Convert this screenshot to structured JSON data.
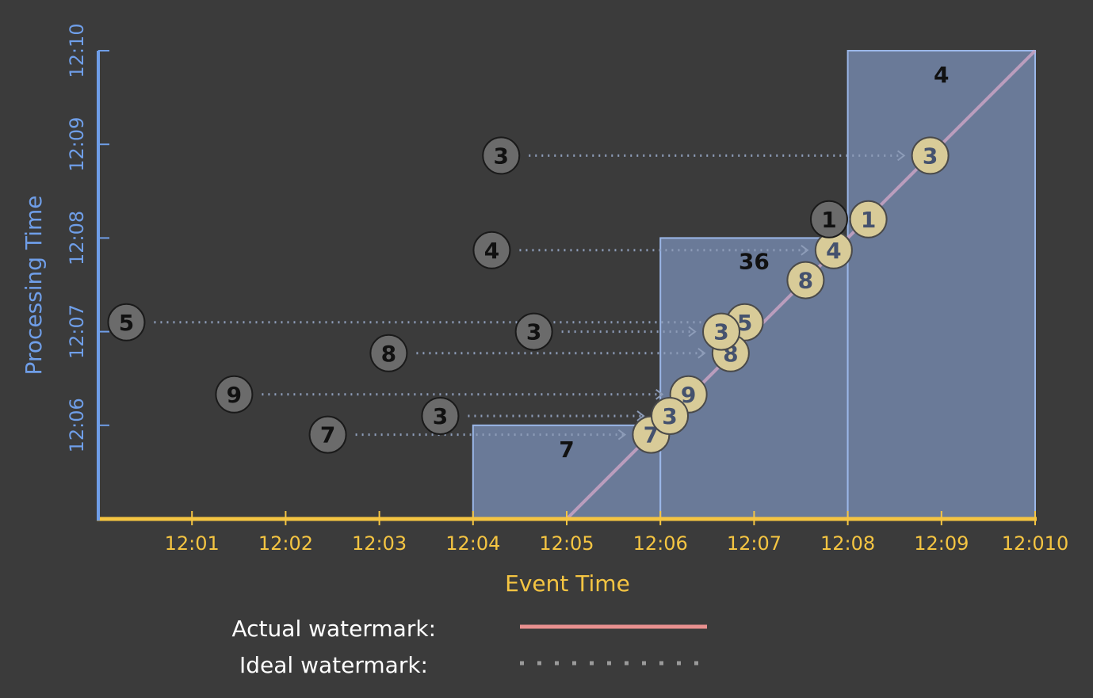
{
  "axes": {
    "x_label": "Event Time",
    "y_label": "Processing Time",
    "x_ticks": [
      "12:01",
      "12:02",
      "12:03",
      "12:04",
      "12:05",
      "12:06",
      "12:07",
      "12:08",
      "12:09",
      "12:010"
    ],
    "y_ticks": [
      "12:06",
      "12:07",
      "12:08",
      "12:09",
      "12:10"
    ],
    "x_color": "#f5c542",
    "y_color": "#6f9ee8"
  },
  "windows": [
    {
      "x_start": 4,
      "x_end": 6,
      "y_top": 1,
      "sum": "7"
    },
    {
      "x_start": 6,
      "x_end": 8,
      "y_top": 3,
      "sum": "36"
    },
    {
      "x_start": 8,
      "x_end": 10,
      "y_top": 5,
      "sum": "4"
    }
  ],
  "watermark_line": {
    "from": [
      5,
      0
    ],
    "to": [
      10,
      5
    ]
  },
  "events": [
    {
      "value": "5",
      "event_time": 6.9,
      "arrival": 0.3,
      "processing_time": 2.1
    },
    {
      "value": "9",
      "event_time": 6.3,
      "arrival": 1.45,
      "processing_time": 1.33
    },
    {
      "value": "7",
      "event_time": 5.9,
      "arrival": 2.45,
      "processing_time": 0.9
    },
    {
      "value": "3",
      "event_time": 6.1,
      "arrival": 3.65,
      "processing_time": 1.1
    },
    {
      "value": "8",
      "event_time": 6.75,
      "arrival": 3.1,
      "processing_time": 1.77
    },
    {
      "value": "3",
      "event_time": 6.65,
      "arrival": 4.65,
      "processing_time": 2.0
    },
    {
      "value": "4",
      "event_time": 7.85,
      "arrival": 4.2,
      "processing_time": 2.87
    },
    {
      "value": "8",
      "event_time": 7.55,
      "arrival": 7.55,
      "processing_time": 2.55
    },
    {
      "value": "1",
      "event_time": 8.22,
      "arrival": 7.8,
      "processing_time": 3.2
    },
    {
      "value": "3",
      "event_time": 8.88,
      "arrival": 4.3,
      "processing_time": 3.88
    }
  ],
  "legend": {
    "actual_label": "Actual watermark:",
    "ideal_label": "Ideal watermark:",
    "actual_color": "#e8908f",
    "ideal_color": "#9a9a9a"
  }
}
